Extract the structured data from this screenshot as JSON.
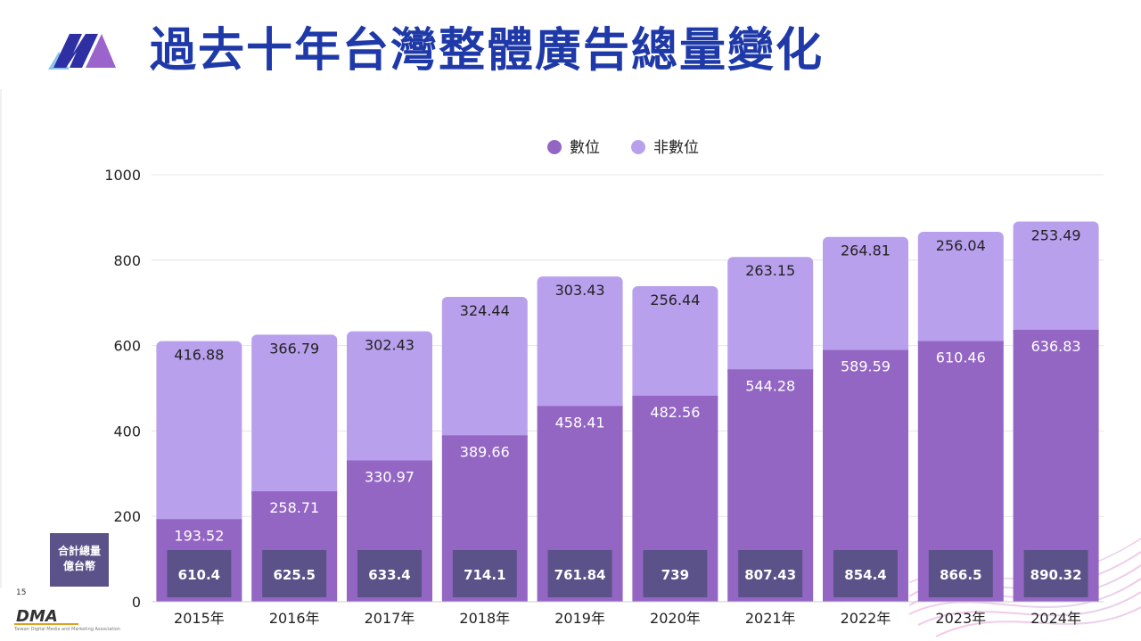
{
  "title": "過去十年台灣整體廣告總量變化",
  "page_number": "15",
  "brand": {
    "logo_text": "DMA",
    "tagline": "Taiwan Digital Media and Marketing Association"
  },
  "side_label": {
    "line1": "合計總量",
    "line2": "億台幣"
  },
  "colors": {
    "digital": "#9466c4",
    "non_digital": "#b9a0ed",
    "total_box": "#5b5289",
    "title": "#1f3aa8",
    "grid": "#e4e4ea"
  },
  "chart_data": {
    "type": "bar",
    "stacked": true,
    "title": "",
    "xlabel": "",
    "ylabel": "",
    "ylim": [
      0,
      1000
    ],
    "yticks": [
      0,
      200,
      400,
      600,
      800,
      1000
    ],
    "legend_position": "top-center",
    "categories": [
      "2015年",
      "2016年",
      "2017年",
      "2018年",
      "2019年",
      "2020年",
      "2021年",
      "2022年",
      "2023年",
      "2024年"
    ],
    "series": [
      {
        "name": "數位",
        "values": [
          193.52,
          258.71,
          330.97,
          389.66,
          458.41,
          482.56,
          544.28,
          589.59,
          610.46,
          636.83
        ]
      },
      {
        "name": "非數位",
        "values": [
          416.88,
          366.79,
          302.43,
          324.44,
          303.43,
          256.44,
          263.15,
          264.81,
          256.04,
          253.49
        ]
      }
    ],
    "totals": [
      "610.4",
      "625.5",
      "633.4",
      "714.1",
      "761.84",
      "739",
      "807.43",
      "854.4",
      "866.5",
      "890.32"
    ]
  }
}
